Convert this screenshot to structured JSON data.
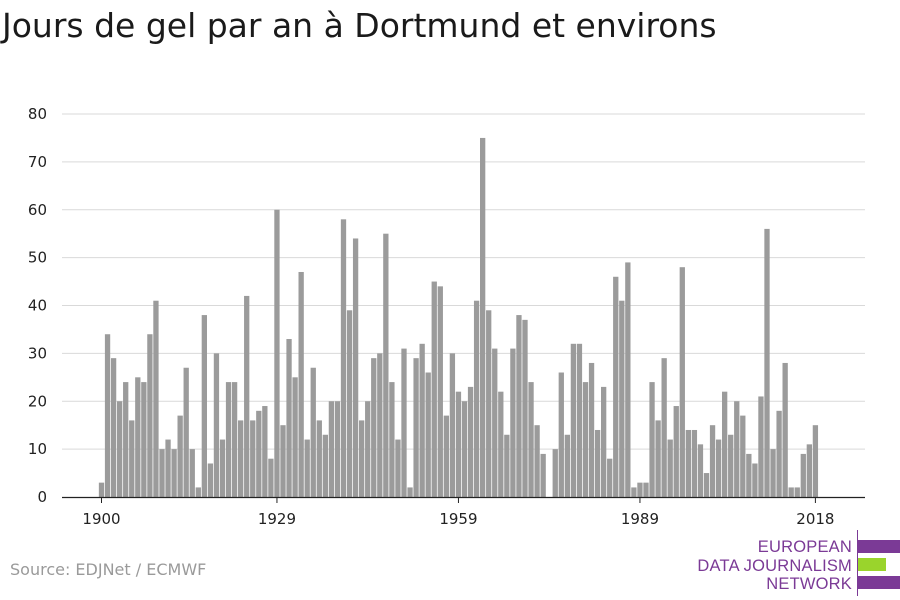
{
  "title": "Jours de gel par an à Dortmund et environs",
  "source": "Source: EDJNet / ECMWF",
  "logo": {
    "lines": [
      "EUROPEAN",
      "DATA JOURNALISM",
      "NETWORK"
    ],
    "colors": {
      "purple": "#7b3a96",
      "green": "#9ad42c"
    }
  },
  "chart_data": {
    "type": "bar",
    "title": "Jours de gel par an à Dortmund et environs",
    "xlabel": "",
    "ylabel": "",
    "ylim": [
      0,
      80
    ],
    "yticks": [
      0,
      10,
      20,
      30,
      40,
      50,
      60,
      70,
      80
    ],
    "xtick_labels": [
      "1900",
      "1929",
      "1959",
      "1989",
      "2018"
    ],
    "grid": "horizontal",
    "bar_color": "#9b9b9b",
    "start_year": 1900,
    "end_year": 2018,
    "series": [
      {
        "x": [
          1900,
          1901,
          1902,
          1903,
          1904,
          1905,
          1906,
          1907,
          1908,
          1909,
          1910,
          1911,
          1912,
          1913,
          1914,
          1915,
          1916,
          1917,
          1918,
          1919,
          1920,
          1921,
          1922,
          1923,
          1924,
          1925,
          1926,
          1927,
          1928,
          1929,
          1930,
          1931,
          1932,
          1933,
          1934,
          1935,
          1936,
          1937,
          1938,
          1939,
          1940,
          1941,
          1942,
          1943,
          1944,
          1945,
          1946,
          1947,
          1948,
          1949,
          1950,
          1951,
          1952,
          1953,
          1954,
          1955,
          1956,
          1957,
          1958,
          1959,
          1960,
          1961,
          1962,
          1963,
          1964,
          1965,
          1966,
          1967,
          1968,
          1969,
          1970,
          1971,
          1972,
          1973,
          1974,
          1975,
          1976,
          1977,
          1978,
          1979,
          1980,
          1981,
          1982,
          1983,
          1984,
          1985,
          1986,
          1987,
          1988,
          1989,
          1990,
          1991,
          1992,
          1993,
          1994,
          1995,
          1996,
          1997,
          1998,
          1999,
          2000,
          2001,
          2002,
          2003,
          2004,
          2005,
          2006,
          2007,
          2008,
          2009,
          2010,
          2011,
          2012,
          2013,
          2014,
          2015,
          2016,
          2017,
          2018
        ],
        "values": [
          3,
          34,
          29,
          20,
          24,
          16,
          25,
          24,
          34,
          41,
          10,
          12,
          10,
          17,
          27,
          10,
          2,
          38,
          7,
          30,
          12,
          24,
          24,
          16,
          42,
          16,
          18,
          19,
          8,
          60,
          15,
          33,
          25,
          47,
          12,
          27,
          16,
          13,
          20,
          20,
          58,
          39,
          54,
          16,
          20,
          29,
          30,
          55,
          24,
          12,
          31,
          2,
          29,
          32,
          26,
          45,
          44,
          17,
          30,
          22,
          20,
          23,
          41,
          75,
          39,
          31,
          22,
          13,
          31,
          38,
          37,
          24,
          15,
          9,
          0,
          10,
          26,
          13,
          32,
          32,
          24,
          28,
          14,
          23,
          8,
          46,
          41,
          49,
          2,
          3,
          3,
          24,
          16,
          29,
          12,
          19,
          48,
          14,
          14,
          11,
          5,
          15,
          12,
          22,
          13,
          20,
          17,
          9,
          7,
          21,
          56,
          10,
          18,
          28,
          2,
          2,
          9,
          11,
          15
        ]
      }
    ]
  }
}
